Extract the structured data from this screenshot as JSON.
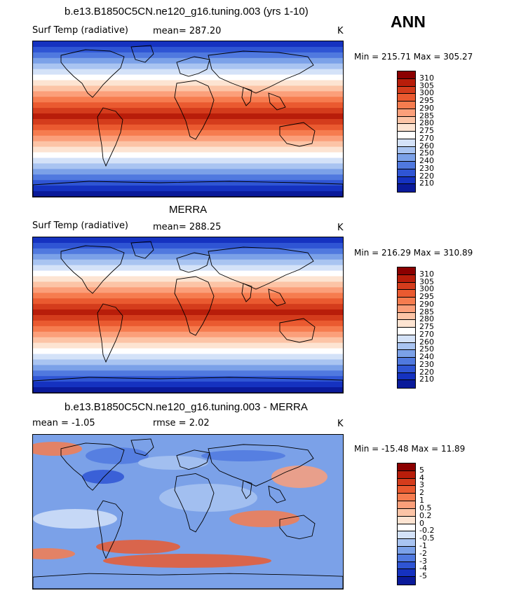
{
  "season": "ANN",
  "panels": [
    {
      "title": "b.e13.B1850C5CN.ne120_g16.tuning.003 (yrs 1-10)",
      "left_label": "Surf Temp (radiative)",
      "center_label": "mean= 287.20",
      "units": "K",
      "minmax": "Min = 215.71 Max = 305.27",
      "colorbar": {
        "labels": [
          "310",
          "305",
          "300",
          "295",
          "290",
          "285",
          "280",
          "275",
          "270",
          "260",
          "250",
          "240",
          "230",
          "220",
          "210"
        ],
        "colors": [
          "#8b0000",
          "#b81d0a",
          "#d43c1c",
          "#ea5a30",
          "#f67c4f",
          "#fb9f7a",
          "#fcc4a6",
          "#fde4d2",
          "#ffffff",
          "#d4e2f8",
          "#a9c4f1",
          "#7ba1e8",
          "#5079df",
          "#2f55d4",
          "#1532c0",
          "#0a1a9a"
        ]
      },
      "field": "model"
    },
    {
      "title": "MERRA",
      "left_label": "Surf Temp (radiative)",
      "center_label": "mean= 288.25",
      "units": "K",
      "minmax": "Min = 216.29 Max = 310.89",
      "colorbar": {
        "labels": [
          "310",
          "305",
          "300",
          "295",
          "290",
          "285",
          "280",
          "275",
          "270",
          "260",
          "250",
          "240",
          "230",
          "220",
          "210"
        ],
        "colors": [
          "#8b0000",
          "#b81d0a",
          "#d43c1c",
          "#ea5a30",
          "#f67c4f",
          "#fb9f7a",
          "#fcc4a6",
          "#fde4d2",
          "#ffffff",
          "#d4e2f8",
          "#a9c4f1",
          "#7ba1e8",
          "#5079df",
          "#2f55d4",
          "#1532c0",
          "#0a1a9a"
        ]
      },
      "field": "obs"
    },
    {
      "title": "b.e13.B1850C5CN.ne120_g16.tuning.003 - MERRA",
      "left_label": "mean =   -1.05",
      "center_label": "rmse =    2.02",
      "units": "K",
      "minmax": "Min = -15.48 Max =  11.89",
      "colorbar": {
        "labels": [
          "5",
          "4",
          "3",
          "2",
          "1",
          "0.5",
          "0.2",
          "0",
          "-0.2",
          "-0.5",
          "-1",
          "-2",
          "-3",
          "-4",
          "-5"
        ],
        "colors": [
          "#8b0000",
          "#b81d0a",
          "#d43c1c",
          "#ea5a30",
          "#f67c4f",
          "#fb9f7a",
          "#fcc4a6",
          "#fde4d2",
          "#ffffff",
          "#d4e2f8",
          "#a9c4f1",
          "#7ba1e8",
          "#5079df",
          "#2f55d4",
          "#1532c0",
          "#0a1a9a"
        ]
      },
      "field": "diff"
    }
  ]
}
